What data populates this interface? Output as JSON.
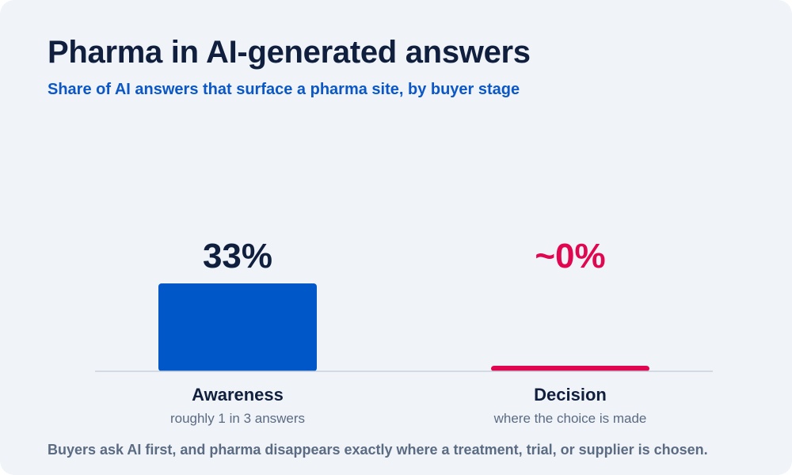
{
  "header": {
    "title": "Pharma in AI-generated answers",
    "subtitle": "Share of AI answers that surface a pharma site, by buyer stage"
  },
  "chart_data": {
    "type": "bar",
    "categories": [
      "Awareness",
      "Decision"
    ],
    "category_notes": [
      "roughly 1 in 3 answers",
      "where the choice is made"
    ],
    "values": [
      33,
      0
    ],
    "value_labels": [
      "33%",
      "~0%"
    ],
    "colors": [
      "#0057c8",
      "#e0064f"
    ],
    "value_label_colors": [
      "#0f1f3d",
      "#e0064f"
    ],
    "baseline_color": "#c9d1dc",
    "ylim": [
      0,
      33
    ],
    "grid": false,
    "legend": "none"
  },
  "footnote": "Buyers ask AI first, and pharma disappears exactly where a treatment, trial, or supplier is chosen."
}
